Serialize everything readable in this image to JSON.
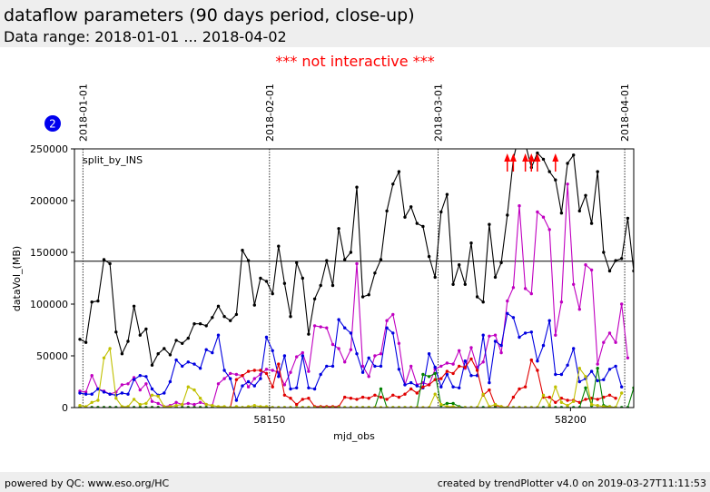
{
  "header": {
    "title": "dataflow parameters (90 days period, close-up)",
    "subtitle": "Data range: 2018-01-01 ... 2018-04-02"
  },
  "notice": "*** not interactive ***",
  "badge": "2",
  "footer": {
    "left": "powered by QC: www.eso.org/HC",
    "right": "created by trendPlotter v4.0 on 2019-03-27T11:11:53"
  },
  "colors": {
    "black": "#000000",
    "magenta": "#c000c0",
    "blue": "#0000e0",
    "red": "#e00000",
    "green": "#008000",
    "olive": "#c0c000",
    "badge": "#0000ee"
  },
  "chart_data": {
    "type": "line",
    "xlabel": "mjd_obs",
    "ylabel": "dataVol_(MB)",
    "annotation": "split_by_INS",
    "xlim": [
      58117.6,
      58210.5
    ],
    "ylim": [
      0,
      250000
    ],
    "xticks": [
      58150,
      58200
    ],
    "yticks": [
      0,
      50000,
      100000,
      150000,
      200000,
      250000
    ],
    "ytick_labels": [
      "0",
      "50000",
      "100000",
      "150000",
      "200000",
      "250000"
    ],
    "hline": 141500,
    "date_markers": [
      {
        "label": "2018-01-01",
        "x": 58119
      },
      {
        "label": "2018-02-01",
        "x": 58150
      },
      {
        "label": "2018-03-01",
        "x": 58178
      },
      {
        "label": "2018-04-01",
        "x": 58209
      }
    ],
    "x_start": 58118.5,
    "x_step": 1,
    "series": [
      {
        "color": "#000000",
        "values": [
          66000,
          63000,
          102000,
          103000,
          143000,
          139000,
          73000,
          52000,
          64000,
          98000,
          70000,
          76000,
          41000,
          52000,
          57000,
          51000,
          65000,
          62000,
          67000,
          81000,
          81000,
          79000,
          87000,
          98000,
          88000,
          84000,
          90000,
          152000,
          142000,
          99000,
          125000,
          122000,
          110000,
          156000,
          120000,
          88000,
          140000,
          125000,
          71000,
          105000,
          118000,
          142000,
          118000,
          173000,
          143000,
          150000,
          213000,
          107000,
          109000,
          130000,
          143000,
          190000,
          216000,
          228000,
          184000,
          194000,
          178000,
          175000,
          146000,
          126000,
          189000,
          206000,
          119000,
          138000,
          119000,
          159000,
          107000,
          102000,
          177000,
          126000,
          140000,
          186000,
          240000,
          265000,
          255000,
          232000,
          246000,
          240000,
          228000,
          220000,
          188000,
          236000,
          244000,
          190000,
          205000,
          178000,
          228000,
          150000,
          132000,
          142000,
          144000,
          183000,
          132000
        ]
      },
      {
        "color": "#c000c0",
        "values": [
          16000,
          15000,
          31000,
          18000,
          16000,
          13000,
          15000,
          22000,
          23000,
          29000,
          17000,
          23000,
          6000,
          4000,
          1000,
          2000,
          5000,
          3000,
          4000,
          3000,
          5000,
          3000,
          2000,
          23000,
          28000,
          33000,
          32000,
          31000,
          20000,
          28000,
          32000,
          37000,
          36000,
          34000,
          22000,
          34000,
          49000,
          53000,
          35000,
          79000,
          78000,
          77000,
          61000,
          57000,
          44000,
          56000,
          139000,
          40000,
          30000,
          50000,
          52000,
          84000,
          90000,
          62000,
          22000,
          40000,
          22000,
          24000,
          22000,
          37000,
          40000,
          43000,
          42000,
          55000,
          38000,
          58000,
          39000,
          44000,
          69000,
          70000,
          53000,
          103000,
          116000,
          195000,
          115000,
          110000,
          189000,
          184000,
          172000,
          70000,
          102000,
          216000,
          119000,
          95000,
          138000,
          133000,
          42000,
          63000,
          72000,
          63000,
          100000,
          48000
        ]
      },
      {
        "color": "#0000e0",
        "values": [
          14000,
          13000,
          13000,
          18000,
          15000,
          13000,
          12000,
          14000,
          13000,
          27000,
          31000,
          30000,
          18000,
          12000,
          14000,
          25000,
          46000,
          40000,
          44000,
          42000,
          38000,
          56000,
          53000,
          70000,
          36000,
          28000,
          7000,
          21000,
          25000,
          21000,
          28000,
          68000,
          55000,
          30000,
          50000,
          18000,
          19000,
          50000,
          19000,
          18000,
          32000,
          40000,
          40000,
          85000,
          77000,
          72000,
          52000,
          34000,
          48000,
          40000,
          40000,
          77000,
          72000,
          37000,
          22000,
          24000,
          21000,
          19000,
          52000,
          39000,
          20000,
          32000,
          20000,
          19000,
          45000,
          31000,
          31000,
          70000,
          24000,
          64000,
          60000,
          91000,
          87000,
          68000,
          72000,
          73000,
          45000,
          60000,
          84000,
          32000,
          32000,
          41000,
          57000,
          25000,
          28000,
          35000,
          26000,
          27000,
          37000,
          40000,
          20000
        ]
      },
      {
        "color": "#e00000",
        "values": [
          0,
          0,
          0,
          0,
          0,
          0,
          0,
          0,
          0,
          0,
          0,
          0,
          0,
          0,
          0,
          0,
          0,
          0,
          0,
          0,
          0,
          0,
          0,
          0,
          0,
          0,
          27000,
          31000,
          35000,
          36000,
          36000,
          33000,
          20000,
          42000,
          12000,
          9000,
          3000,
          8000,
          9000,
          1000,
          1000,
          1000,
          1000,
          1000,
          10000,
          9000,
          8000,
          10000,
          9000,
          12000,
          10000,
          8000,
          12000,
          10000,
          13000,
          18000,
          14000,
          20000,
          22000,
          27000,
          28000,
          35000,
          33000,
          40000,
          39000,
          47000,
          36000,
          12000,
          17000,
          2000,
          1000,
          0,
          10000,
          18000,
          20000,
          46000,
          36000,
          10000,
          10000,
          5000,
          9000,
          7000,
          7000,
          5000,
          8000,
          9000,
          8000,
          10000,
          12000,
          9000
        ]
      },
      {
        "color": "#008000",
        "values": [
          0,
          0,
          0,
          0,
          0,
          0,
          0,
          0,
          0,
          0,
          0,
          0,
          0,
          0,
          0,
          0,
          0,
          0,
          0,
          0,
          0,
          0,
          0,
          0,
          0,
          0,
          0,
          0,
          0,
          0,
          0,
          0,
          0,
          0,
          0,
          0,
          0,
          0,
          0,
          0,
          0,
          0,
          0,
          0,
          0,
          0,
          0,
          0,
          0,
          0,
          18000,
          0,
          0,
          0,
          0,
          0,
          0,
          32000,
          30000,
          33000,
          2000,
          4000,
          4000,
          1000,
          0,
          0,
          0,
          0,
          0,
          0,
          0,
          0,
          0,
          0,
          0,
          0,
          0,
          0,
          0,
          0,
          0,
          0,
          0,
          0,
          19000,
          2000,
          38000,
          2000,
          1000,
          0,
          0,
          0,
          19000
        ]
      },
      {
        "color": "#c0c000",
        "values": [
          2000,
          1000,
          5000,
          7000,
          48000,
          57000,
          9000,
          1000,
          1000,
          8000,
          3000,
          4000,
          12000,
          11000,
          1000,
          1000,
          2000,
          3000,
          20000,
          17000,
          9000,
          3000,
          2000,
          1000,
          1000,
          0,
          1000,
          0,
          1000,
          2000,
          1000,
          1000,
          0,
          0,
          0,
          0,
          0,
          0,
          0,
          0,
          0,
          0,
          0,
          0,
          0,
          0,
          0,
          0,
          0,
          0,
          0,
          0,
          0,
          0,
          0,
          0,
          0,
          0,
          0,
          13000,
          3000,
          1000,
          1000,
          0,
          0,
          0,
          0,
          13000,
          1000,
          3000,
          1000,
          0,
          0,
          0,
          0,
          0,
          0,
          12000,
          2000,
          20000,
          5000,
          2000,
          6000,
          38000,
          30000,
          3000,
          2000,
          1000,
          1000,
          0,
          14000
        ]
      }
    ],
    "overflow_markers": [
      58189.5,
      58190.5,
      58192.5,
      58193.5,
      58194.5,
      58197.5
    ]
  }
}
